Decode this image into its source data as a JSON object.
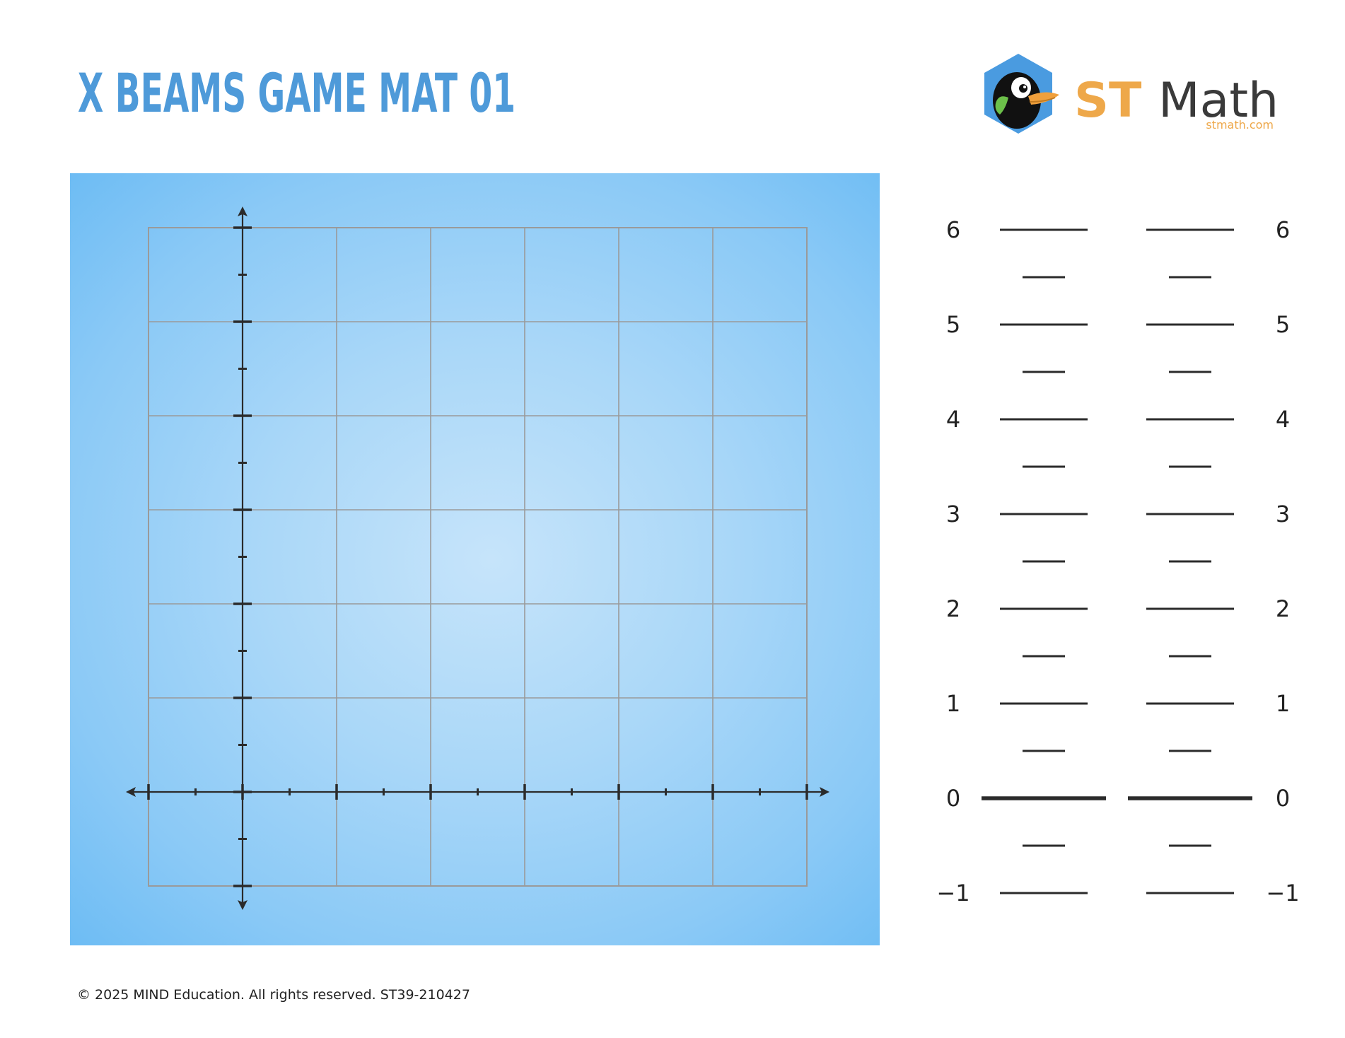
{
  "header": {
    "title": "X BEAMS GAME MAT 01"
  },
  "logo": {
    "brand_st": "ST",
    "brand_math": "Math",
    "url": "stmath.com",
    "mascot": "jiji-penguin-icon",
    "colors": {
      "st": "#eea84a",
      "math": "#3a3a3a",
      "hexagon": "#4a9be0"
    }
  },
  "game_mat": {
    "background_color": "#8ac9f6",
    "grid_line_color": "#9a9a9a",
    "axis_color": "#2b2b2b"
  },
  "number_line": {
    "labels": [
      "6",
      "5",
      "4",
      "3",
      "2",
      "1",
      "0",
      "−1"
    ]
  },
  "footer": {
    "copyright": "© 2025 MIND Education. All rights reserved. ST39-210427"
  }
}
